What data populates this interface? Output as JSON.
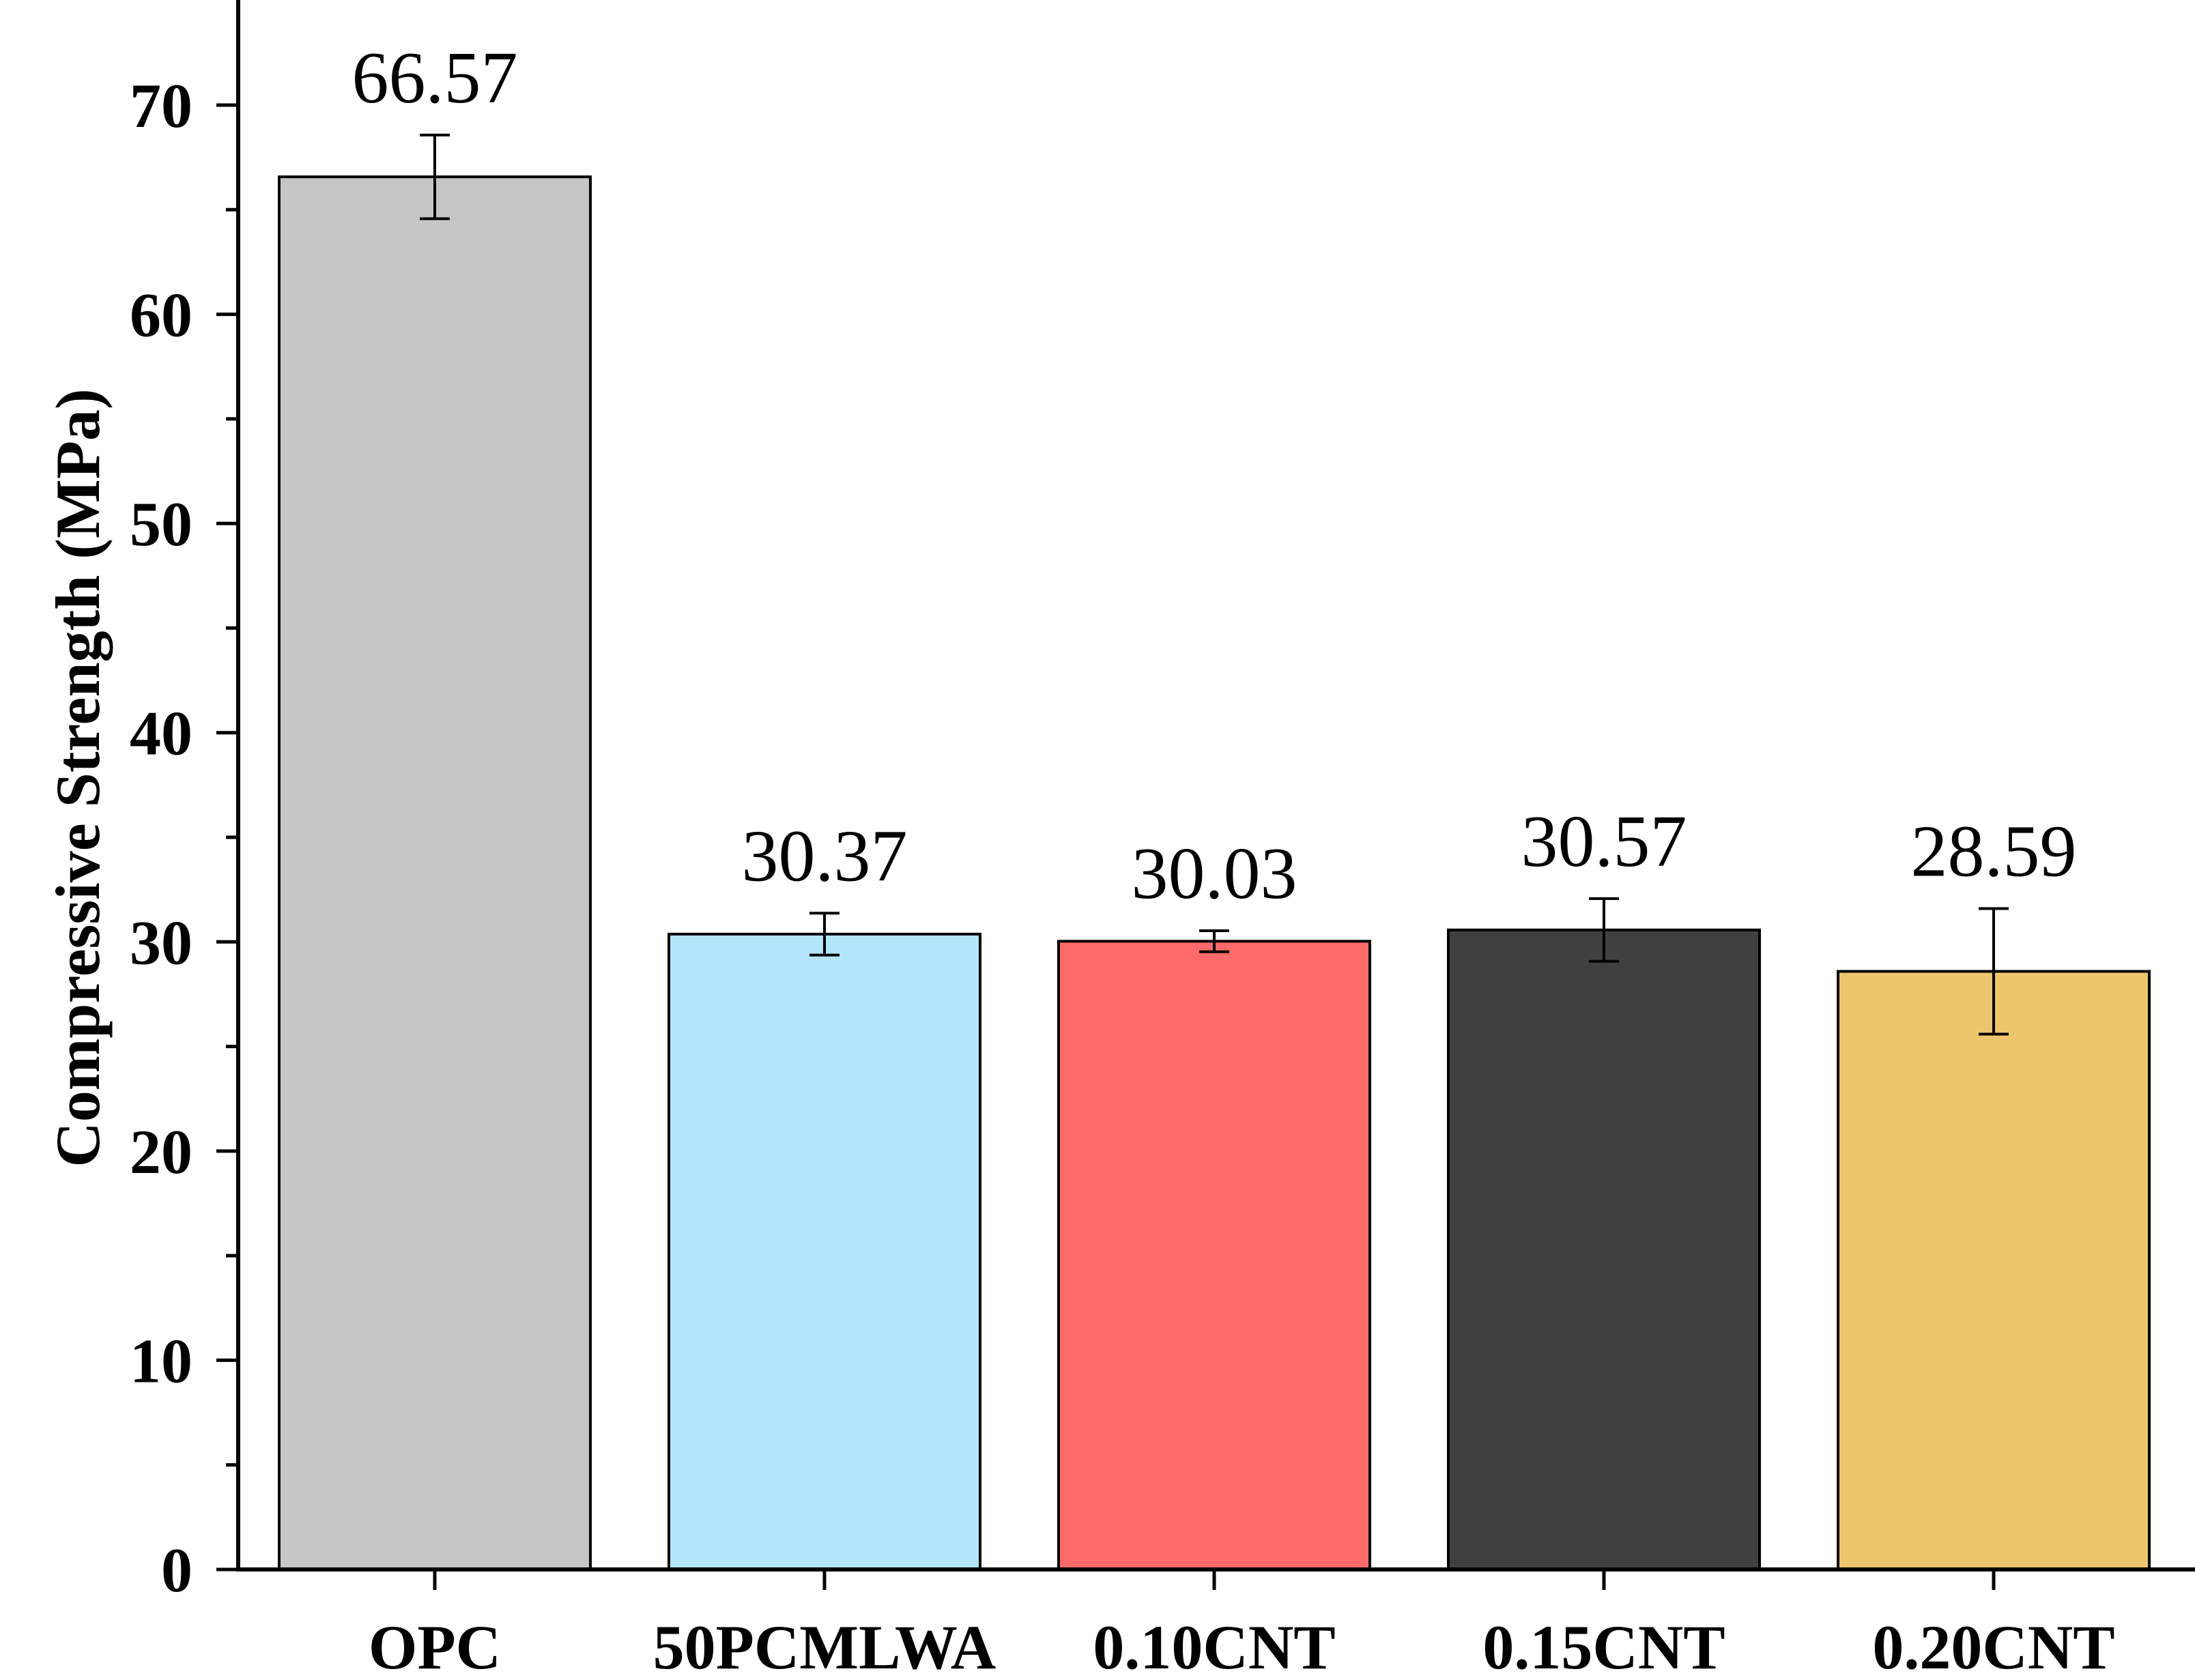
{
  "chart_data": {
    "type": "bar",
    "title": "",
    "xlabel": "",
    "ylabel": "Compressive Strength (MPa)",
    "ylim": [
      0,
      75
    ],
    "yticks": [
      0,
      10,
      20,
      30,
      40,
      50,
      60,
      70
    ],
    "grid": false,
    "legend": "none",
    "categories": [
      "OPC",
      "50PCMLWA",
      "0.10CNT",
      "0.15CNT",
      "0.20CNT"
    ],
    "values": [
      66.57,
      30.37,
      30.03,
      30.57,
      28.59
    ],
    "value_labels": [
      "66.57",
      "30.37",
      "30.03",
      "30.57",
      "28.59"
    ],
    "errors": [
      2.0,
      1.0,
      0.5,
      1.5,
      3.0
    ],
    "colors": [
      "#c6c6c6",
      "#b3e5fb",
      "#ff6b6b",
      "#404040",
      "#ecc56c"
    ]
  }
}
